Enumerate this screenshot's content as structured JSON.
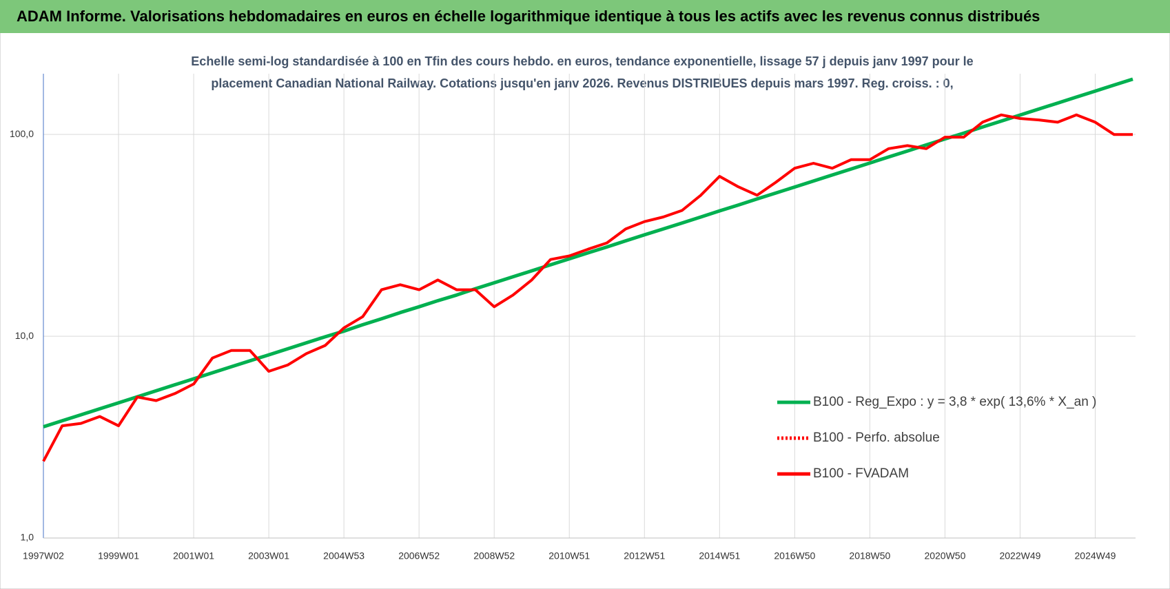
{
  "chart_data": {
    "type": "line",
    "title": "ADAM Informe. Valorisations hebdomadaires en euros en échelle logarithmique identique à tous les actifs avec les revenus connus distribués",
    "subtitle": [
      "Echelle semi-log standardisée à 100 en Tfin des cours hebdo. en euros, tendance exponentielle, lissage 57 j depuis janv 1997 pour le",
      "placement Canadian National Railway. Cotations jusqu'en janv 2026.  Revenus DISTRIBUES depuis mars 1997. Reg. croiss. : 0,"
    ],
    "categories": [
      "1997W02",
      null,
      null,
      null,
      "1999W01",
      null,
      null,
      null,
      "2001W01",
      null,
      null,
      null,
      "2003W01",
      null,
      null,
      null,
      "2004W53",
      null,
      null,
      null,
      "2006W52",
      null,
      null,
      null,
      "2008W52",
      null,
      null,
      null,
      "2010W51",
      null,
      null,
      null,
      "2012W51",
      null,
      null,
      null,
      "2014W51",
      null,
      null,
      null,
      "2016W50",
      null,
      null,
      null,
      "2018W50",
      null,
      null,
      null,
      "2020W50",
      null,
      null,
      null,
      "2022W49",
      null,
      null,
      null,
      "2024W49",
      null,
      null
    ],
    "log_scale": true,
    "ylim": [
      1,
      200
    ],
    "yticks": [
      {
        "value": 1,
        "label": "1,0"
      },
      {
        "value": 10,
        "label": "10,0"
      },
      {
        "value": 100,
        "label": "100,0"
      }
    ],
    "grid": true,
    "legend": "right",
    "series": [
      {
        "name": "B100 - Reg_Expo : y = 3,8 * exp( 13,6% *  X_an )",
        "color": "#00b050",
        "style": "solid",
        "values": [
          3.56,
          3.81,
          4.08,
          4.37,
          4.68,
          5.01,
          5.37,
          5.75,
          6.15,
          6.59,
          7.06,
          7.56,
          8.09,
          8.66,
          9.28,
          9.94,
          10.6,
          11.4,
          12.2,
          13.1,
          14.0,
          15.0,
          16.0,
          17.2,
          18.4,
          19.7,
          21.1,
          22.6,
          24.2,
          25.9,
          27.7,
          29.7,
          31.8,
          34.0,
          36.4,
          39.0,
          41.8,
          44.7,
          47.9,
          51.3,
          54.9,
          58.8,
          63.0,
          67.4,
          72.2,
          77.3,
          82.8,
          88.7,
          94.9,
          101.6,
          108.8,
          116.5,
          124.8,
          133.6,
          143.1,
          153.2,
          164.1,
          175.7,
          188
        ]
      },
      {
        "name": "B100 - Perfo. absolue",
        "color": "#ff0000",
        "style": "dotted",
        "values": [
          null,
          null,
          null,
          null,
          null,
          null,
          null,
          null,
          null,
          null,
          null,
          null,
          null,
          null,
          null,
          null,
          null,
          null,
          null,
          null,
          null,
          null,
          null,
          null,
          null,
          null,
          null,
          null,
          null,
          null,
          null,
          null,
          null,
          null,
          null,
          null,
          null,
          null,
          null,
          null,
          null,
          null,
          null,
          null,
          null,
          null,
          null,
          null,
          null,
          null,
          null,
          null,
          null,
          null,
          null,
          null,
          null,
          null,
          null
        ]
      },
      {
        "name": "B100 - FVADAM",
        "color": "#ff0000",
        "style": "solid",
        "values": [
          2.4,
          3.6,
          3.7,
          4.0,
          3.6,
          5.0,
          4.8,
          5.2,
          5.8,
          7.8,
          8.5,
          8.5,
          6.7,
          7.2,
          8.2,
          9.0,
          11,
          12.5,
          17,
          18,
          17,
          19,
          17,
          17,
          14,
          16,
          19,
          24,
          25,
          27,
          29,
          34,
          37,
          39,
          42,
          50,
          62,
          55,
          50,
          58,
          68,
          72,
          68,
          75,
          75,
          85,
          88,
          85,
          97,
          97,
          115,
          125,
          120,
          118,
          115,
          125,
          115,
          100,
          100
        ]
      }
    ]
  }
}
